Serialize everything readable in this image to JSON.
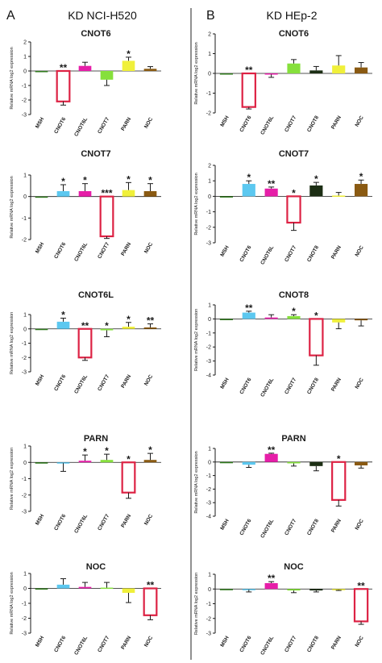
{
  "panels": [
    {
      "letter": "A",
      "title": "KD NCI-H520"
    },
    {
      "letter": "B",
      "title": "KD HEp-2"
    }
  ],
  "ylabel": "Relative mRNA log2 expression",
  "colors": {
    "MSH": "#2f7a1c",
    "CNOT6": "#5cc8f0",
    "CNOT6L": "#e61ea8",
    "CNOT7": "#86e03c",
    "CNOT8": "#1c2e14",
    "PARN": "#f0f03a",
    "NOC": "#8a5a12",
    "knockdown_outline": "#dd2244"
  },
  "chart_data": [
    {
      "type": "bar",
      "panel": "A",
      "title": "CNOT6",
      "categories": [
        "MSH",
        "CNOT6",
        "CNOT6L",
        "CNOT7",
        "PARN",
        "NOC"
      ],
      "values": [
        0,
        -2.1,
        0.35,
        -0.6,
        0.7,
        0.15
      ],
      "errors": [
        0,
        0.25,
        0.25,
        0.4,
        0.25,
        0.15
      ],
      "significance": [
        "",
        "**",
        "",
        "",
        "*",
        ""
      ],
      "knockdown": "CNOT6",
      "ylim": [
        -3,
        2
      ],
      "yticks": [
        -3,
        -2,
        -1,
        0,
        1,
        2
      ],
      "ylabel": "Relative mRNA log2 expression"
    },
    {
      "type": "bar",
      "panel": "A",
      "title": "CNOT7",
      "categories": [
        "MSH",
        "CNOT6",
        "CNOT6L",
        "CNOT7",
        "PARN",
        "NOC"
      ],
      "values": [
        0,
        0.25,
        0.25,
        -1.85,
        0.3,
        0.25
      ],
      "errors": [
        0,
        0.3,
        0.35,
        0.1,
        0.35,
        0.35
      ],
      "significance": [
        "",
        "*",
        "*",
        "***",
        "*",
        "*"
      ],
      "knockdown": "CNOT7",
      "ylim": [
        -2,
        1
      ],
      "yticks": [
        -2,
        -1,
        0,
        1
      ],
      "ylabel": "Relative mRNA log2 expression"
    },
    {
      "type": "bar",
      "panel": "A",
      "title": "CNOT6L",
      "categories": [
        "MSH",
        "CNOT6",
        "CNOT6L",
        "CNOT7",
        "PARN",
        "NOC"
      ],
      "values": [
        0,
        0.5,
        -2.0,
        -0.1,
        0.15,
        0.1
      ],
      "errors": [
        0,
        0.25,
        0.2,
        0.45,
        0.3,
        0.25
      ],
      "significance": [
        "",
        "*",
        "**",
        "*",
        "*",
        "**"
      ],
      "knockdown": "CNOT6L",
      "ylim": [
        -3,
        1
      ],
      "yticks": [
        -3,
        -2,
        -1,
        0,
        1
      ],
      "ylabel": "Relative mRNA log2 expression"
    },
    {
      "type": "bar",
      "panel": "A",
      "title": "PARN",
      "categories": [
        "MSH",
        "CNOT6",
        "CNOT6L",
        "CNOT7",
        "PARN",
        "NOC"
      ],
      "values": [
        0,
        -0.05,
        0.1,
        0.15,
        -1.85,
        0.15
      ],
      "errors": [
        0,
        0.5,
        0.35,
        0.35,
        0.35,
        0.4
      ],
      "significance": [
        "",
        "",
        "*",
        "*",
        "*",
        "*"
      ],
      "knockdown": "PARN",
      "ylim": [
        -3,
        1
      ],
      "yticks": [
        -3,
        -2,
        -1,
        0,
        1
      ],
      "ylabel": "Relative mRNA log2 expression"
    },
    {
      "type": "bar",
      "panel": "A",
      "title": "NOC",
      "categories": [
        "MSH",
        "CNOT6",
        "CNOT6L",
        "CNOT7",
        "PARN",
        "NOC"
      ],
      "values": [
        0,
        0.25,
        0.1,
        0.05,
        -0.3,
        -1.8
      ],
      "errors": [
        0,
        0.4,
        0.3,
        0.35,
        0.65,
        0.3
      ],
      "significance": [
        "",
        "",
        "",
        "",
        "",
        "**"
      ],
      "knockdown": "NOC",
      "ylim": [
        -3,
        1
      ],
      "yticks": [
        -3,
        -2,
        -1,
        0,
        1
      ],
      "ylabel": "Relative mRNA log2 expression"
    },
    {
      "type": "bar",
      "panel": "B",
      "title": "CNOT6",
      "categories": [
        "MSH",
        "CNOT6",
        "CNOT6L",
        "CNOT7",
        "CNOT8",
        "PARN",
        "NOC"
      ],
      "values": [
        0,
        -1.7,
        -0.05,
        0.5,
        0.15,
        0.4,
        0.3
      ],
      "errors": [
        0,
        0.1,
        0.15,
        0.2,
        0.2,
        0.5,
        0.25
      ],
      "significance": [
        "",
        "**",
        "",
        "",
        "",
        "",
        ""
      ],
      "knockdown": "CNOT6",
      "ylim": [
        -2,
        2
      ],
      "yticks": [
        -2,
        -1,
        0,
        1,
        2
      ],
      "ylabel": "Relative mRNA log2 expression"
    },
    {
      "type": "bar",
      "panel": "B",
      "title": "CNOT7",
      "categories": [
        "MSH",
        "CNOT6",
        "CNOT6L",
        "CNOT7",
        "CNOT8",
        "PARN",
        "NOC"
      ],
      "values": [
        0,
        0.8,
        0.5,
        -1.7,
        0.7,
        0.05,
        0.8
      ],
      "errors": [
        0,
        0.2,
        0.1,
        0.5,
        0.2,
        0.2,
        0.25
      ],
      "significance": [
        "",
        "*",
        "**",
        "*",
        "*",
        "",
        "*"
      ],
      "knockdown": "CNOT7",
      "ylim": [
        -3,
        2
      ],
      "yticks": [
        -3,
        -2,
        -1,
        0,
        1,
        2
      ],
      "ylabel": "Relative mRNA log2 expression"
    },
    {
      "type": "bar",
      "panel": "B",
      "title": "CNOT8",
      "categories": [
        "MSH",
        "CNOT6",
        "CNOT6L",
        "CNOT7",
        "CNOT8",
        "PARN",
        "NOC"
      ],
      "values": [
        0,
        0.45,
        0.1,
        0.2,
        -2.6,
        -0.25,
        -0.1
      ],
      "errors": [
        0,
        0.1,
        0.2,
        0.1,
        0.7,
        0.45,
        0.4
      ],
      "significance": [
        "",
        "**",
        "",
        "*",
        "*",
        "",
        ""
      ],
      "knockdown": "CNOT8",
      "ylim": [
        -4,
        1
      ],
      "yticks": [
        -4,
        -3,
        -2,
        -1,
        0,
        1
      ],
      "ylabel": "Relative mRNA log2 expression"
    },
    {
      "type": "bar",
      "panel": "B",
      "title": "PARN",
      "categories": [
        "MSH",
        "CNOT6",
        "CNOT6L",
        "CNOT7",
        "CNOT8",
        "PARN",
        "NOC"
      ],
      "values": [
        0,
        -0.2,
        0.6,
        -0.1,
        -0.3,
        -2.8,
        -0.25
      ],
      "errors": [
        0,
        0.2,
        0.05,
        0.2,
        0.35,
        0.45,
        0.2
      ],
      "significance": [
        "",
        "",
        "**",
        "",
        "",
        "*",
        ""
      ],
      "knockdown": "PARN",
      "ylim": [
        -4,
        1
      ],
      "yticks": [
        -4,
        -3,
        -2,
        -1,
        0,
        1
      ],
      "ylabel": "Relative mRNA log2 expression"
    },
    {
      "type": "bar",
      "panel": "B",
      "title": "NOC",
      "categories": [
        "MSH",
        "CNOT6",
        "CNOT6L",
        "CNOT7",
        "CNOT8",
        "PARN",
        "NOC"
      ],
      "values": [
        0,
        -0.05,
        0.4,
        -0.1,
        -0.1,
        -0.05,
        -2.2
      ],
      "errors": [
        0,
        0.15,
        0.1,
        0.15,
        0.1,
        0.05,
        0.2
      ],
      "significance": [
        "",
        "",
        "**",
        "",
        "",
        "",
        "**"
      ],
      "knockdown": "NOC",
      "ylim": [
        -3,
        1
      ],
      "yticks": [
        -3,
        -2,
        -1,
        0,
        1
      ],
      "ylabel": "Relative mRNA log2 expression"
    }
  ]
}
